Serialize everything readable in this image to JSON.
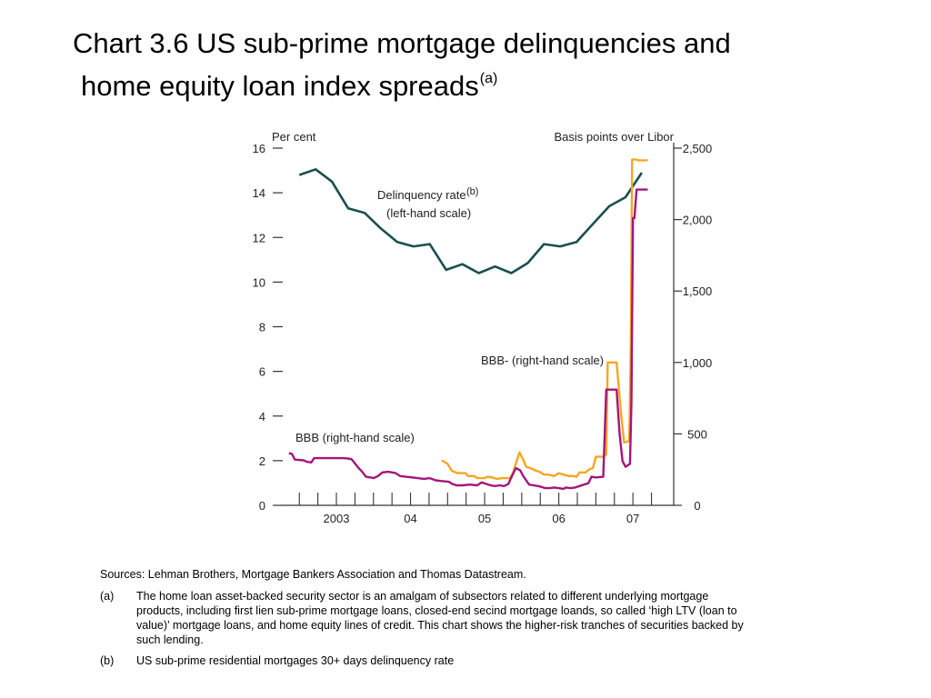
{
  "page": {
    "title_line1": "Chart 3.6  US sub-prime mortgage delinquencies and",
    "title_line2": "home equity loan index spreads",
    "title_superscript": "(a)"
  },
  "notes": {
    "sources": "Sources: Lehman Brothers, Mortgage Bankers Association and Thomas Datastream.",
    "items": [
      {
        "tag": "(a)",
        "text": "The home loan asset-backed security sector is an amalgam of subsectors related to different underlying mortgage products, including first lien sub-prime mortgage loans, closed-end secind mortgage loands, so called ‘high LTV (loan to value)’ mortgage loans, and home equity lines of credit.  This chart shows the higher-risk tranches of securities backed by such lending."
      },
      {
        "tag": "(b)",
        "text": "US sub-prime residential mortgages 30+ days delinquency rate"
      }
    ]
  },
  "chart_data": {
    "type": "line",
    "left_axis": {
      "label": "Per cent",
      "ticks": [
        0,
        2,
        4,
        6,
        8,
        10,
        12,
        14,
        16
      ],
      "ylim": [
        0,
        16
      ]
    },
    "right_axis": {
      "label": "Basis points over Libor",
      "ticks": [
        0,
        500,
        1000,
        1500,
        2000,
        2500
      ],
      "tick_labels": [
        "0",
        "500",
        "1,000",
        "1,500",
        "2,000",
        "2,500"
      ],
      "ylim": [
        0,
        2500
      ]
    },
    "x_axis": {
      "tick_labels": [
        "2003",
        "04",
        "05",
        "06",
        "07"
      ],
      "label_positions": [
        2003.0,
        2004.0,
        2005.0,
        2006.0,
        2007.0
      ],
      "xlim": [
        2002.35,
        2007.55
      ]
    },
    "grid": false,
    "colors": {
      "delinquency": "#1b4f4f",
      "bbb_minus": "#f5a623",
      "bbb": "#a3167a",
      "axis": "#333333"
    },
    "annotations": [
      {
        "text": "Delinquency rate",
        "sup": "(b)",
        "series": "delinquency"
      },
      {
        "text": "(left-hand scale)",
        "series": "delinquency"
      },
      {
        "text": "BBB- (right-hand scale)",
        "series": "bbb_minus"
      },
      {
        "text": "BBB (right-hand scale)",
        "series": "bbb"
      }
    ],
    "series": [
      {
        "key": "delinquency",
        "name": "Delinquency rate",
        "axis": "left",
        "points": [
          [
            2002.5,
            14.8
          ],
          [
            2002.72,
            15.05
          ],
          [
            2002.94,
            14.5
          ],
          [
            2003.16,
            13.3
          ],
          [
            2003.38,
            13.1
          ],
          [
            2003.6,
            12.4
          ],
          [
            2003.82,
            11.8
          ],
          [
            2004.04,
            11.6
          ],
          [
            2004.26,
            11.7
          ],
          [
            2004.48,
            10.55
          ],
          [
            2004.7,
            10.8
          ],
          [
            2004.92,
            10.4
          ],
          [
            2005.14,
            10.7
          ],
          [
            2005.36,
            10.4
          ],
          [
            2005.58,
            10.85
          ],
          [
            2005.8,
            11.7
          ],
          [
            2006.02,
            11.6
          ],
          [
            2006.24,
            11.8
          ],
          [
            2006.46,
            12.6
          ],
          [
            2006.68,
            13.4
          ],
          [
            2006.9,
            13.8
          ],
          [
            2007.12,
            14.9
          ]
        ]
      },
      {
        "key": "bbb_minus",
        "name": "BBB-",
        "axis": "right",
        "points": [
          [
            2004.42,
            315
          ],
          [
            2004.5,
            290
          ],
          [
            2004.56,
            240
          ],
          [
            2004.64,
            225
          ],
          [
            2004.74,
            225
          ],
          [
            2004.78,
            205
          ],
          [
            2004.86,
            205
          ],
          [
            2004.9,
            190
          ],
          [
            2005.0,
            190
          ],
          [
            2005.04,
            200
          ],
          [
            2005.1,
            195
          ],
          [
            2005.16,
            185
          ],
          [
            2005.24,
            190
          ],
          [
            2005.34,
            190
          ],
          [
            2005.38,
            225
          ],
          [
            2005.42,
            290
          ],
          [
            2005.47,
            370
          ],
          [
            2005.52,
            320
          ],
          [
            2005.56,
            270
          ],
          [
            2005.62,
            260
          ],
          [
            2005.68,
            245
          ],
          [
            2005.74,
            235
          ],
          [
            2005.8,
            215
          ],
          [
            2005.86,
            215
          ],
          [
            2005.94,
            205
          ],
          [
            2006.0,
            225
          ],
          [
            2006.06,
            215
          ],
          [
            2006.14,
            205
          ],
          [
            2006.2,
            205
          ],
          [
            2006.24,
            200
          ],
          [
            2006.28,
            230
          ],
          [
            2006.36,
            230
          ],
          [
            2006.42,
            255
          ],
          [
            2006.46,
            260
          ],
          [
            2006.5,
            340
          ],
          [
            2006.6,
            340
          ],
          [
            2006.64,
            355
          ],
          [
            2006.66,
            1000
          ],
          [
            2006.78,
            1000
          ],
          [
            2006.84,
            640
          ],
          [
            2006.88,
            440
          ],
          [
            2006.95,
            450
          ],
          [
            2006.97,
            1070
          ],
          [
            2006.99,
            2420
          ],
          [
            2007.05,
            2420
          ],
          [
            2007.07,
            2415
          ],
          [
            2007.2,
            2415
          ]
        ]
      },
      {
        "key": "bbb",
        "name": "BBB",
        "axis": "right",
        "points": [
          [
            2002.36,
            365
          ],
          [
            2002.4,
            360
          ],
          [
            2002.44,
            320
          ],
          [
            2002.56,
            315
          ],
          [
            2002.6,
            305
          ],
          [
            2002.66,
            300
          ],
          [
            2002.7,
            330
          ],
          [
            2002.8,
            330
          ],
          [
            2002.9,
            330
          ],
          [
            2003.0,
            330
          ],
          [
            2003.1,
            330
          ],
          [
            2003.2,
            325
          ],
          [
            2003.24,
            300
          ],
          [
            2003.3,
            260
          ],
          [
            2003.34,
            240
          ],
          [
            2003.4,
            200
          ],
          [
            2003.46,
            195
          ],
          [
            2003.5,
            190
          ],
          [
            2003.56,
            205
          ],
          [
            2003.62,
            230
          ],
          [
            2003.7,
            235
          ],
          [
            2003.8,
            225
          ],
          [
            2003.86,
            205
          ],
          [
            2003.94,
            200
          ],
          [
            2004.02,
            195
          ],
          [
            2004.1,
            190
          ],
          [
            2004.18,
            185
          ],
          [
            2004.26,
            190
          ],
          [
            2004.34,
            175
          ],
          [
            2004.42,
            170
          ],
          [
            2004.52,
            165
          ],
          [
            2004.56,
            150
          ],
          [
            2004.62,
            140
          ],
          [
            2004.7,
            140
          ],
          [
            2004.8,
            145
          ],
          [
            2004.9,
            140
          ],
          [
            2004.96,
            160
          ],
          [
            2005.02,
            150
          ],
          [
            2005.08,
            140
          ],
          [
            2005.14,
            135
          ],
          [
            2005.2,
            140
          ],
          [
            2005.26,
            135
          ],
          [
            2005.32,
            150
          ],
          [
            2005.36,
            195
          ],
          [
            2005.42,
            260
          ],
          [
            2005.48,
            245
          ],
          [
            2005.52,
            205
          ],
          [
            2005.56,
            175
          ],
          [
            2005.6,
            145
          ],
          [
            2005.66,
            140
          ],
          [
            2005.72,
            135
          ],
          [
            2005.76,
            130
          ],
          [
            2005.82,
            120
          ],
          [
            2005.88,
            120
          ],
          [
            2005.94,
            125
          ],
          [
            2006.0,
            120
          ],
          [
            2006.06,
            115
          ],
          [
            2006.1,
            125
          ],
          [
            2006.16,
            120
          ],
          [
            2006.22,
            125
          ],
          [
            2006.28,
            135
          ],
          [
            2006.34,
            145
          ],
          [
            2006.4,
            155
          ],
          [
            2006.44,
            200
          ],
          [
            2006.5,
            195
          ],
          [
            2006.6,
            200
          ],
          [
            2006.64,
            810
          ],
          [
            2006.78,
            810
          ],
          [
            2006.82,
            500
          ],
          [
            2006.86,
            310
          ],
          [
            2006.9,
            270
          ],
          [
            2006.96,
            290
          ],
          [
            2006.98,
            720
          ],
          [
            2007.0,
            2010
          ],
          [
            2007.02,
            2010
          ],
          [
            2007.05,
            2210
          ],
          [
            2007.2,
            2210
          ]
        ]
      }
    ]
  }
}
